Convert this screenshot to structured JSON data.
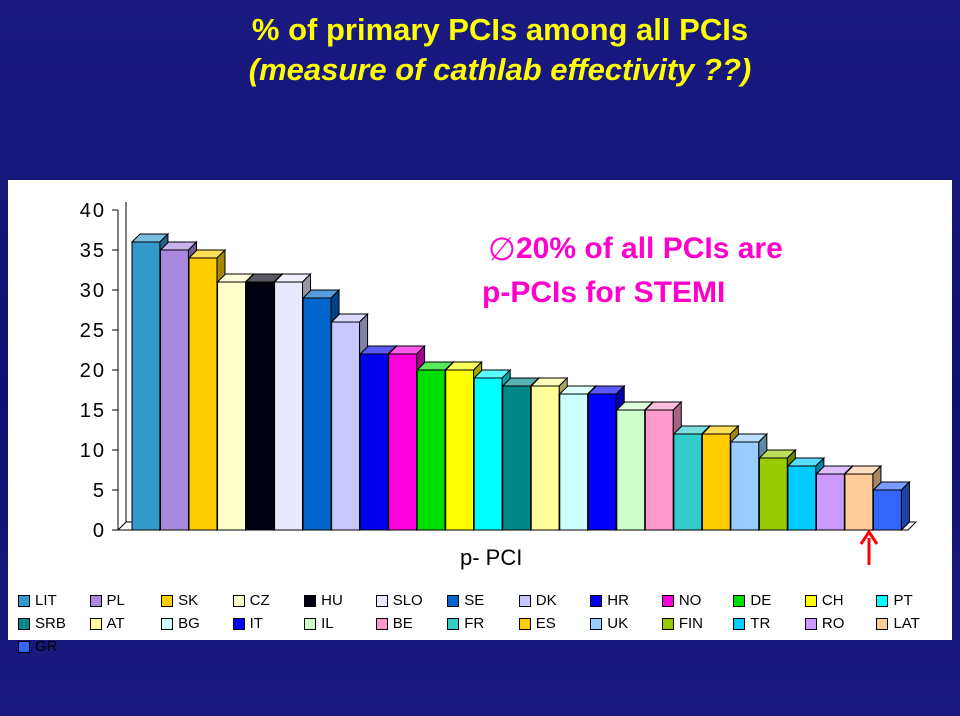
{
  "title": {
    "line1": "% of primary PCIs among all PCIs",
    "line2": "(measure of cathlab effectivity ??)"
  },
  "annotation": {
    "symbol": "∅",
    "line1": " 20% of all PCIs are",
    "line2": "p-PCIs for STEMI"
  },
  "chart_data": {
    "type": "bar",
    "xlabel": "p- PCI",
    "ylabel": "",
    "ylim": [
      0,
      40
    ],
    "yticks": [
      "40",
      "35",
      "30",
      "25",
      "20",
      "15",
      "10",
      "5",
      "0"
    ],
    "grid": false,
    "legend_position": "bottom",
    "categories": [
      "LIT",
      "PL",
      "SK",
      "CZ",
      "HU",
      "SLO",
      "SE",
      "DK",
      "HR",
      "NO",
      "DE",
      "CH",
      "PT",
      "SRB",
      "AT",
      "BG",
      "IT",
      "IL",
      "BE",
      "FR",
      "ES",
      "UK",
      "FIN",
      "TR",
      "RO",
      "LAT",
      "GR"
    ],
    "values": [
      36,
      35,
      34,
      31,
      31,
      31,
      29,
      26,
      22,
      22,
      20,
      20,
      19,
      18,
      18,
      17,
      17,
      15,
      15,
      12,
      12,
      11,
      9,
      8,
      7,
      7,
      5
    ],
    "colors": [
      "#3399cc",
      "#aa88dd",
      "#ffcc00",
      "#ffffcc",
      "#000011",
      "#e8e8ff",
      "#0066cc",
      "#c8c8ff",
      "#0000ee",
      "#ff00dd",
      "#00dd00",
      "#ffff00",
      "#00ffff",
      "#008888",
      "#ffff99",
      "#ccffff",
      "#0000ff",
      "#ccffcc",
      "#ff99cc",
      "#33cccc",
      "#ffcc00",
      "#99ccff",
      "#99cc00",
      "#00ccff",
      "#cc99ff",
      "#ffcc99",
      "#3366ff"
    ]
  }
}
